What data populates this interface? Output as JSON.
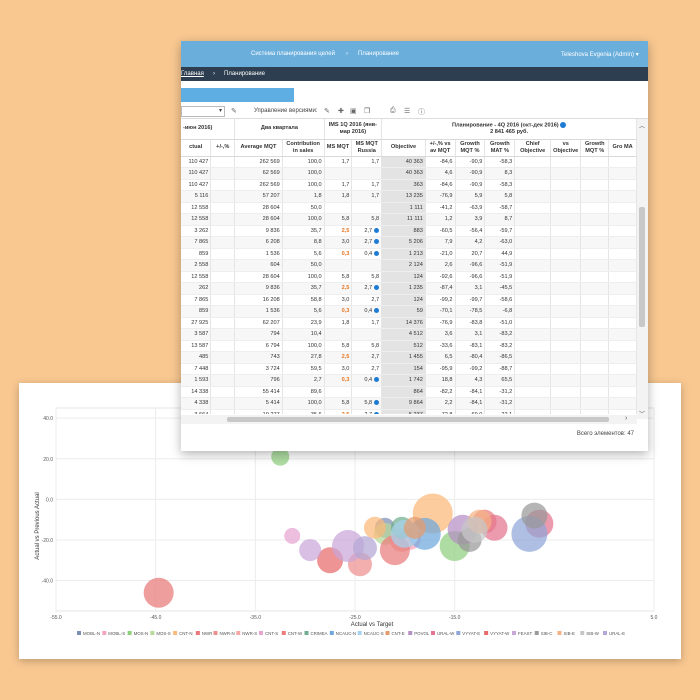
{
  "topbar": {
    "nav1": "Система планирования целей",
    "sep": "›",
    "nav2": "Планирование",
    "user": "Teleshova Evgenia (Admin) ▾"
  },
  "breadcrumb": {
    "home": "Главная",
    "sep": "›",
    "current": "Планирование"
  },
  "toolbar": {
    "versions_label": "Управление версиями:"
  },
  "table": {
    "group_headers": {
      "g1": "-июн 2016)",
      "g2": "Два квартала",
      "g3": "IMS 1Q 2016 (янв-мар 2016)",
      "g4": "Планирование - 4Q 2016 (окт-дек 2016)",
      "g4_sub": "2 841 465 руб."
    },
    "columns": [
      "ctual",
      "+/-,%",
      "Average MQT",
      "Contribution in sales",
      "MS MQT",
      "MS MQT Russia",
      "Objective",
      "+/-,% vs av MQT",
      "Growth MQT %",
      "Growth MAT %",
      "Chief Objective",
      "vs Objective",
      "Growth MQT %",
      "Gro MA"
    ],
    "rows": [
      [
        "110 427",
        "",
        "262 569",
        "100,0",
        "1,7",
        "1,7",
        "40 363",
        "-84,6",
        "-90,9",
        "-58,3"
      ],
      [
        "110 427",
        "",
        "62 569",
        "100,0",
        "",
        "",
        "40 363",
        "4,6",
        "-90,9",
        "8,3"
      ],
      [
        "110 427",
        "",
        "262 569",
        "100,0",
        "1,7",
        "1,7",
        "363",
        "-84,6",
        "-90,9",
        "-58,3"
      ],
      [
        "5 116",
        "",
        "57 207",
        "1,8",
        "1,8",
        "1,7",
        "13 235",
        "-76,9",
        "5,9",
        "5,8"
      ],
      [
        "12 558",
        "",
        "28 604",
        "50,0",
        "",
        "",
        "1 111",
        "-41,2",
        "-63,9",
        "-58,7"
      ],
      [
        "12 558",
        "",
        "28 604",
        "100,0",
        "5,8",
        "5,8",
        "11 111",
        "1,2",
        "3,9",
        "8,7"
      ],
      [
        "3 262",
        "",
        "9 836",
        "35,7",
        "2,5",
        "2,7",
        "883",
        "-60,5",
        "-56,4",
        "-59,7"
      ],
      [
        "7 865",
        "",
        "6 208",
        "8,8",
        "3,0",
        "2,7",
        "5 206",
        "7,9",
        "4,2",
        "-63,0"
      ],
      [
        "859",
        "",
        "1 536",
        "5,6",
        "0,3",
        "0,4",
        "1 213",
        "-21,0",
        "20,7",
        "44,9"
      ],
      [
        "2 558",
        "",
        "604",
        "50,0",
        "",
        "",
        "2 124",
        "2,6",
        "-96,6",
        "-51,9"
      ],
      [
        "12 558",
        "",
        "28 604",
        "100,0",
        "5,8",
        "5,8",
        "124",
        "-92,6",
        "-96,6",
        "-51,9"
      ],
      [
        "262",
        "",
        "9 836",
        "35,7",
        "2,5",
        "2,7",
        "1 235",
        "-87,4",
        "3,1",
        "-45,5"
      ],
      [
        "7 865",
        "",
        "16 208",
        "58,8",
        "3,0",
        "2,7",
        "124",
        "-99,2",
        "-99,7",
        "-58,6"
      ],
      [
        "859",
        "",
        "1 536",
        "5,6",
        "0,3",
        "0,4",
        "59",
        "-70,1",
        "-78,5",
        "-6,8"
      ],
      [
        "27 925",
        "",
        "62 207",
        "23,9",
        "1,8",
        "1,7",
        "14 376",
        "-76,9",
        "-83,8",
        "-51,0"
      ],
      [
        "3 587",
        "",
        "794",
        "10,4",
        "",
        "",
        "4 512",
        "3,6",
        "3,1",
        "-83,2"
      ],
      [
        "13 587",
        "",
        "6 794",
        "100,0",
        "5,8",
        "5,8",
        "512",
        "-33,6",
        "-83,1",
        "-83,2"
      ],
      [
        "485",
        "",
        "743",
        "27,8",
        "2,5",
        "2,7",
        "1 455",
        "6,5",
        "-80,4",
        "-86,5"
      ],
      [
        "7 448",
        "",
        "3 724",
        "59,5",
        "3,0",
        "2,7",
        "154",
        "-95,9",
        "-99,2",
        "-88,7"
      ],
      [
        "1 593",
        "",
        "796",
        "2,7",
        "0,3",
        "0,4",
        "1 742",
        "18,8",
        "4,3",
        "65,5"
      ],
      [
        "14 338",
        "",
        "55 414",
        "89,6",
        "",
        "",
        "864",
        "-82,2",
        "-84,1",
        "-31,2"
      ],
      [
        "4 338",
        "",
        "5 414",
        "100,0",
        "5,8",
        "5,8",
        "9 864",
        "2,2",
        "-84,1",
        "-31,2"
      ],
      [
        "3 664",
        "",
        "19 277",
        "35,6",
        "2,5",
        "2,7",
        "5 237",
        "-72,8",
        "-69,0",
        "-22,1"
      ]
    ],
    "dot_rows": [
      6,
      7,
      8,
      11,
      13,
      19,
      21,
      22
    ],
    "orange_rows": [
      6,
      8,
      11,
      13,
      17,
      19,
      22
    ],
    "total_label": "Всего элементов: 47"
  },
  "chart_data": {
    "type": "scatter",
    "title": "",
    "xlabel": "Actual vs Target",
    "ylabel": "Actual vs Previous Actual",
    "xlim": [
      -55,
      5
    ],
    "ylim": [
      -55,
      45
    ],
    "xticks": [
      "-55.0",
      "-45.0",
      "-35.0",
      "-25.0",
      "-15.0",
      "5.0"
    ],
    "xtick_values": [
      -55,
      -45,
      -35,
      -25,
      -15,
      5
    ],
    "yticks": [
      "40.0",
      "20.0",
      "0.0",
      "-20.0",
      "-40.0"
    ],
    "ytick_values": [
      40,
      20,
      0,
      -20,
      -40
    ],
    "grid": true,
    "legend_position": "bottom",
    "series": [
      {
        "name": "MOBL-N",
        "color": "#7b8fb3",
        "points": [
          [
            -22.0,
            -14.0,
            10
          ]
        ]
      },
      {
        "name": "MOBL-S",
        "color": "#f4a6c0",
        "points": [
          [
            -19.5,
            -19.5,
            11
          ]
        ]
      },
      {
        "name": "MOS-N",
        "color": "#8fcf7e",
        "points": [
          [
            -32.5,
            21.0,
            9
          ],
          [
            -15.0,
            -23.0,
            15
          ]
        ]
      },
      {
        "name": "MOS-S",
        "color": "#b7d99a",
        "points": [
          [
            -22.0,
            -17.0,
            11
          ]
        ]
      },
      {
        "name": "CNT-N",
        "color": "#fbb97a",
        "points": [
          [
            -23.0,
            -14.0,
            11
          ],
          [
            -17.2,
            -7.0,
            20
          ]
        ]
      },
      {
        "name": "NWR",
        "color": "#e97878",
        "points": [
          [
            -44.7,
            -46.0,
            15
          ]
        ]
      },
      {
        "name": "NWR-N",
        "color": "#ee8f8f",
        "points": [
          [
            -24.5,
            -32.0,
            12
          ]
        ]
      },
      {
        "name": "NWR-S",
        "color": "#f8a7a7",
        "points": [
          [
            -20.3,
            -20.0,
            12
          ]
        ]
      },
      {
        "name": "CNT-S",
        "color": "#e8a5d3",
        "points": [
          [
            -31.3,
            -18.0,
            8
          ]
        ]
      },
      {
        "name": "CNT-W",
        "color": "#e97c7c",
        "points": [
          [
            -21.0,
            -25.0,
            15
          ],
          [
            -12.0,
            -11.0,
            12
          ]
        ]
      },
      {
        "name": "CRIMEA",
        "color": "#72ad8f",
        "points": [
          [
            -20.3,
            -14.0,
            11
          ]
        ]
      },
      {
        "name": "NCAUC-N",
        "color": "#6fa8dc",
        "points": [
          [
            -18.0,
            -17.0,
            16
          ]
        ]
      },
      {
        "name": "NCAUC-S",
        "color": "#a6d3f0",
        "points": [
          [
            -20.0,
            -17.0,
            14
          ]
        ]
      },
      {
        "name": "CNT-E",
        "color": "#e59b6d",
        "points": [
          [
            -19.0,
            -14.0,
            11
          ]
        ]
      },
      {
        "name": "POVOL",
        "color": "#b68fc5",
        "points": [
          [
            -14.2,
            -15.0,
            15
          ]
        ]
      },
      {
        "name": "URAL-W",
        "color": "#e4758f",
        "points": [
          [
            -11.0,
            -14.0,
            13
          ],
          [
            -6.5,
            -12.0,
            14
          ]
        ]
      },
      {
        "name": "VYYAT-E",
        "color": "#8fa6d8",
        "points": [
          [
            -7.5,
            -17.0,
            18
          ]
        ]
      },
      {
        "name": "VYYAT-W",
        "color": "#e76b6b",
        "points": [
          [
            -27.5,
            -30.0,
            13
          ]
        ]
      },
      {
        "name": "FEAST",
        "color": "#c9a6d8",
        "points": [
          [
            -29.5,
            -25.0,
            11
          ],
          [
            -25.7,
            -23.0,
            16
          ]
        ]
      },
      {
        "name": "SIB-C",
        "color": "#999999",
        "points": [
          [
            -13.5,
            -20.0,
            12
          ],
          [
            -7.0,
            -8.0,
            13
          ]
        ]
      },
      {
        "name": "SIB-E",
        "color": "#f4b183",
        "points": [
          [
            -12.5,
            -11.0,
            12
          ]
        ]
      },
      {
        "name": "SIB-W",
        "color": "#c7c7c7",
        "points": [
          [
            -13.0,
            -15.0,
            13
          ]
        ]
      },
      {
        "name": "URAL-E",
        "color": "#b4a7d6",
        "points": [
          [
            -24.0,
            -24.0,
            12
          ]
        ]
      }
    ]
  }
}
